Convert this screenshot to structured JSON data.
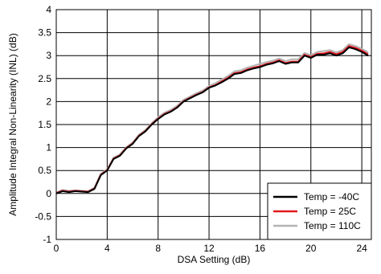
{
  "chart_data": {
    "type": "line",
    "xlabel": "DSA Setting (dB)",
    "ylabel": "Amplitude Integral Non-Linearity (INL) (dB)",
    "xlim": [
      0,
      24.75
    ],
    "ylim": [
      -1,
      4
    ],
    "xticks": [
      0,
      4,
      8,
      12,
      16,
      20,
      24
    ],
    "yticks": [
      -1,
      -0.5,
      0,
      0.5,
      1,
      1.5,
      2,
      2.5,
      3,
      3.5,
      4
    ],
    "ytick_labels": [
      "-1",
      "-0.5",
      "0",
      "0.5",
      "1",
      "1.5",
      "2",
      "2.5",
      "3",
      "3.5",
      "4"
    ],
    "grid": true,
    "legend_position": "bottom-right",
    "x": [
      0,
      0.5,
      1,
      1.5,
      2,
      2.5,
      3,
      3.5,
      4,
      4.5,
      5,
      5.5,
      6,
      6.5,
      7,
      7.5,
      8,
      8.5,
      9,
      9.5,
      10,
      10.5,
      11,
      11.5,
      12,
      12.5,
      13,
      13.5,
      14,
      14.5,
      15,
      15.5,
      16,
      16.5,
      17,
      17.5,
      18,
      18.5,
      19,
      19.5,
      20,
      20.5,
      21,
      21.5,
      22,
      22.5,
      23,
      23.5,
      24,
      24.5
    ],
    "series": [
      {
        "name": "Temp = -40C",
        "color": "#000000",
        "values": [
          0,
          0.05,
          0.03,
          0.05,
          0.04,
          0.03,
          0.1,
          0.4,
          0.5,
          0.75,
          0.82,
          0.98,
          1.08,
          1.25,
          1.35,
          1.5,
          1.62,
          1.72,
          1.78,
          1.87,
          2.0,
          2.07,
          2.14,
          2.2,
          2.3,
          2.35,
          2.42,
          2.5,
          2.6,
          2.62,
          2.68,
          2.72,
          2.75,
          2.8,
          2.83,
          2.88,
          2.82,
          2.85,
          2.85,
          3.0,
          2.95,
          3.02,
          3.02,
          3.05,
          3.0,
          3.05,
          3.18,
          3.14,
          3.08,
          3.0
        ]
      },
      {
        "name": "Temp = 25C",
        "color": "#e0191e",
        "values": [
          0.01,
          0.06,
          0.04,
          0.06,
          0.05,
          0.04,
          0.11,
          0.41,
          0.51,
          0.76,
          0.83,
          0.99,
          1.09,
          1.26,
          1.36,
          1.51,
          1.63,
          1.73,
          1.79,
          1.88,
          2.01,
          2.08,
          2.15,
          2.21,
          2.31,
          2.36,
          2.44,
          2.52,
          2.62,
          2.64,
          2.7,
          2.74,
          2.77,
          2.82,
          2.85,
          2.9,
          2.84,
          2.87,
          2.87,
          3.02,
          2.97,
          3.04,
          3.05,
          3.08,
          3.03,
          3.08,
          3.21,
          3.17,
          3.11,
          3.03
        ]
      },
      {
        "name": "Temp = 110C",
        "color": "#b4b4b4",
        "values": [
          0.02,
          0.08,
          0.06,
          0.07,
          0.06,
          0.05,
          0.13,
          0.43,
          0.53,
          0.78,
          0.85,
          1.01,
          1.11,
          1.28,
          1.38,
          1.53,
          1.66,
          1.76,
          1.82,
          1.91,
          2.04,
          2.11,
          2.18,
          2.24,
          2.34,
          2.4,
          2.48,
          2.56,
          2.66,
          2.68,
          2.74,
          2.78,
          2.82,
          2.86,
          2.89,
          2.94,
          2.88,
          2.92,
          2.92,
          3.06,
          3.01,
          3.08,
          3.1,
          3.12,
          3.07,
          3.12,
          3.25,
          3.21,
          3.15,
          3.07
        ]
      }
    ]
  }
}
